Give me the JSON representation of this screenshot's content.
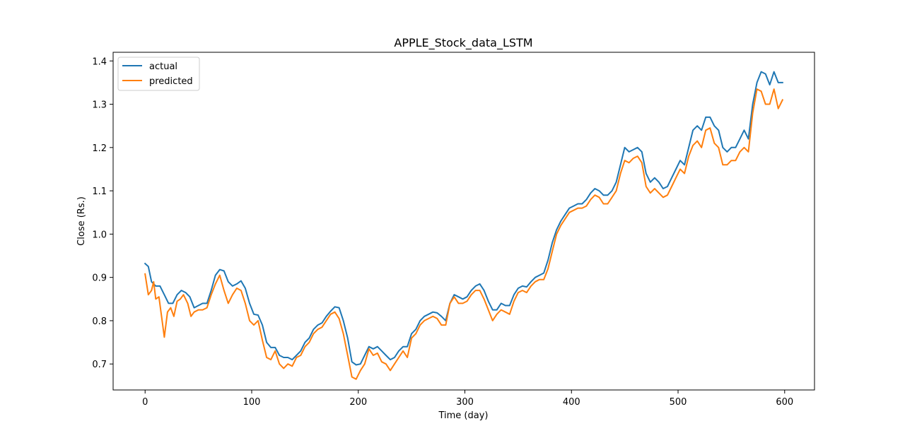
{
  "chart_data": {
    "type": "line",
    "title": "APPLE_Stock_data_LSTM",
    "xlabel": "Time (day)",
    "ylabel": "Close (Rs.)",
    "xlim": [
      -30,
      628
    ],
    "ylim": [
      0.64,
      1.42
    ],
    "xticks": [
      0,
      100,
      200,
      300,
      400,
      500,
      600
    ],
    "yticks": [
      0.7,
      0.8,
      0.9,
      1.0,
      1.1,
      1.2,
      1.3,
      1.4
    ],
    "ytick_labels": [
      "0.7",
      "0.8",
      "0.9",
      "1.0",
      "1.1",
      "1.2",
      "1.3",
      "1.4"
    ],
    "grid": false,
    "legend": "upper left",
    "series": [
      {
        "name": "actual",
        "color": "#1f77b4",
        "points": [
          [
            0,
            0.932
          ],
          [
            3,
            0.925
          ],
          [
            6,
            0.89
          ],
          [
            10,
            0.88
          ],
          [
            14,
            0.88
          ],
          [
            18,
            0.86
          ],
          [
            22,
            0.84
          ],
          [
            26,
            0.84
          ],
          [
            30,
            0.86
          ],
          [
            34,
            0.87
          ],
          [
            38,
            0.865
          ],
          [
            42,
            0.855
          ],
          [
            46,
            0.83
          ],
          [
            50,
            0.835
          ],
          [
            54,
            0.84
          ],
          [
            58,
            0.84
          ],
          [
            62,
            0.87
          ],
          [
            66,
            0.905
          ],
          [
            70,
            0.918
          ],
          [
            74,
            0.915
          ],
          [
            78,
            0.89
          ],
          [
            82,
            0.88
          ],
          [
            86,
            0.885
          ],
          [
            90,
            0.892
          ],
          [
            94,
            0.875
          ],
          [
            98,
            0.84
          ],
          [
            102,
            0.815
          ],
          [
            106,
            0.813
          ],
          [
            110,
            0.79
          ],
          [
            114,
            0.75
          ],
          [
            118,
            0.738
          ],
          [
            122,
            0.738
          ],
          [
            126,
            0.72
          ],
          [
            130,
            0.715
          ],
          [
            134,
            0.715
          ],
          [
            138,
            0.71
          ],
          [
            142,
            0.72
          ],
          [
            146,
            0.73
          ],
          [
            150,
            0.75
          ],
          [
            154,
            0.76
          ],
          [
            158,
            0.78
          ],
          [
            162,
            0.79
          ],
          [
            166,
            0.795
          ],
          [
            170,
            0.81
          ],
          [
            174,
            0.822
          ],
          [
            178,
            0.832
          ],
          [
            182,
            0.83
          ],
          [
            186,
            0.8
          ],
          [
            190,
            0.76
          ],
          [
            194,
            0.705
          ],
          [
            198,
            0.698
          ],
          [
            202,
            0.7
          ],
          [
            206,
            0.72
          ],
          [
            210,
            0.74
          ],
          [
            214,
            0.735
          ],
          [
            218,
            0.74
          ],
          [
            222,
            0.73
          ],
          [
            226,
            0.72
          ],
          [
            230,
            0.71
          ],
          [
            234,
            0.715
          ],
          [
            238,
            0.73
          ],
          [
            242,
            0.74
          ],
          [
            246,
            0.74
          ],
          [
            250,
            0.77
          ],
          [
            254,
            0.78
          ],
          [
            258,
            0.8
          ],
          [
            262,
            0.81
          ],
          [
            266,
            0.815
          ],
          [
            270,
            0.82
          ],
          [
            274,
            0.818
          ],
          [
            278,
            0.81
          ],
          [
            282,
            0.8
          ],
          [
            286,
            0.84
          ],
          [
            290,
            0.86
          ],
          [
            294,
            0.855
          ],
          [
            298,
            0.85
          ],
          [
            302,
            0.855
          ],
          [
            306,
            0.87
          ],
          [
            310,
            0.88
          ],
          [
            314,
            0.885
          ],
          [
            318,
            0.87
          ],
          [
            322,
            0.845
          ],
          [
            326,
            0.825
          ],
          [
            330,
            0.825
          ],
          [
            334,
            0.84
          ],
          [
            338,
            0.835
          ],
          [
            342,
            0.835
          ],
          [
            346,
            0.86
          ],
          [
            350,
            0.875
          ],
          [
            354,
            0.88
          ],
          [
            358,
            0.878
          ],
          [
            362,
            0.89
          ],
          [
            366,
            0.9
          ],
          [
            370,
            0.905
          ],
          [
            374,
            0.91
          ],
          [
            378,
            0.94
          ],
          [
            382,
            0.98
          ],
          [
            386,
            1.01
          ],
          [
            390,
            1.03
          ],
          [
            394,
            1.045
          ],
          [
            398,
            1.06
          ],
          [
            402,
            1.065
          ],
          [
            406,
            1.07
          ],
          [
            410,
            1.07
          ],
          [
            414,
            1.08
          ],
          [
            418,
            1.095
          ],
          [
            422,
            1.105
          ],
          [
            426,
            1.1
          ],
          [
            430,
            1.09
          ],
          [
            434,
            1.09
          ],
          [
            438,
            1.1
          ],
          [
            442,
            1.12
          ],
          [
            446,
            1.16
          ],
          [
            450,
            1.2
          ],
          [
            454,
            1.19
          ],
          [
            458,
            1.195
          ],
          [
            462,
            1.2
          ],
          [
            466,
            1.19
          ],
          [
            470,
            1.14
          ],
          [
            474,
            1.12
          ],
          [
            478,
            1.13
          ],
          [
            482,
            1.12
          ],
          [
            486,
            1.105
          ],
          [
            490,
            1.11
          ],
          [
            494,
            1.13
          ],
          [
            498,
            1.15
          ],
          [
            502,
            1.17
          ],
          [
            506,
            1.16
          ],
          [
            510,
            1.2
          ],
          [
            514,
            1.24
          ],
          [
            518,
            1.25
          ],
          [
            522,
            1.24
          ],
          [
            526,
            1.27
          ],
          [
            530,
            1.27
          ],
          [
            534,
            1.25
          ],
          [
            538,
            1.24
          ],
          [
            542,
            1.2
          ],
          [
            546,
            1.19
          ],
          [
            550,
            1.2
          ],
          [
            554,
            1.2
          ],
          [
            558,
            1.22
          ],
          [
            562,
            1.24
          ],
          [
            566,
            1.22
          ],
          [
            570,
            1.3
          ],
          [
            574,
            1.35
          ],
          [
            578,
            1.375
          ],
          [
            582,
            1.37
          ],
          [
            586,
            1.345
          ],
          [
            590,
            1.375
          ],
          [
            594,
            1.35
          ],
          [
            598,
            1.35
          ]
        ]
      },
      {
        "name": "predicted",
        "color": "#ff7f0e",
        "points": [
          [
            0,
            0.908
          ],
          [
            3,
            0.86
          ],
          [
            6,
            0.87
          ],
          [
            8,
            0.89
          ],
          [
            10,
            0.85
          ],
          [
            13,
            0.855
          ],
          [
            16,
            0.8
          ],
          [
            18,
            0.762
          ],
          [
            21,
            0.82
          ],
          [
            24,
            0.83
          ],
          [
            27,
            0.81
          ],
          [
            30,
            0.845
          ],
          [
            33,
            0.85
          ],
          [
            36,
            0.86
          ],
          [
            40,
            0.84
          ],
          [
            43,
            0.81
          ],
          [
            46,
            0.82
          ],
          [
            50,
            0.825
          ],
          [
            54,
            0.825
          ],
          [
            58,
            0.83
          ],
          [
            62,
            0.86
          ],
          [
            66,
            0.885
          ],
          [
            70,
            0.905
          ],
          [
            74,
            0.87
          ],
          [
            78,
            0.84
          ],
          [
            82,
            0.86
          ],
          [
            86,
            0.875
          ],
          [
            90,
            0.87
          ],
          [
            94,
            0.84
          ],
          [
            98,
            0.8
          ],
          [
            102,
            0.79
          ],
          [
            106,
            0.8
          ],
          [
            110,
            0.755
          ],
          [
            114,
            0.715
          ],
          [
            118,
            0.71
          ],
          [
            122,
            0.73
          ],
          [
            126,
            0.7
          ],
          [
            130,
            0.69
          ],
          [
            134,
            0.7
          ],
          [
            138,
            0.695
          ],
          [
            142,
            0.715
          ],
          [
            146,
            0.72
          ],
          [
            150,
            0.74
          ],
          [
            154,
            0.75
          ],
          [
            158,
            0.77
          ],
          [
            162,
            0.78
          ],
          [
            166,
            0.785
          ],
          [
            170,
            0.8
          ],
          [
            174,
            0.815
          ],
          [
            178,
            0.82
          ],
          [
            182,
            0.805
          ],
          [
            186,
            0.77
          ],
          [
            190,
            0.72
          ],
          [
            194,
            0.67
          ],
          [
            198,
            0.665
          ],
          [
            202,
            0.685
          ],
          [
            206,
            0.7
          ],
          [
            210,
            0.735
          ],
          [
            214,
            0.72
          ],
          [
            218,
            0.725
          ],
          [
            222,
            0.705
          ],
          [
            226,
            0.7
          ],
          [
            230,
            0.685
          ],
          [
            234,
            0.7
          ],
          [
            238,
            0.715
          ],
          [
            242,
            0.73
          ],
          [
            246,
            0.715
          ],
          [
            250,
            0.76
          ],
          [
            254,
            0.77
          ],
          [
            258,
            0.79
          ],
          [
            262,
            0.8
          ],
          [
            266,
            0.805
          ],
          [
            270,
            0.81
          ],
          [
            274,
            0.805
          ],
          [
            278,
            0.79
          ],
          [
            282,
            0.79
          ],
          [
            286,
            0.84
          ],
          [
            290,
            0.855
          ],
          [
            294,
            0.84
          ],
          [
            298,
            0.84
          ],
          [
            302,
            0.845
          ],
          [
            306,
            0.86
          ],
          [
            310,
            0.87
          ],
          [
            314,
            0.87
          ],
          [
            318,
            0.85
          ],
          [
            322,
            0.825
          ],
          [
            326,
            0.8
          ],
          [
            330,
            0.815
          ],
          [
            334,
            0.825
          ],
          [
            338,
            0.82
          ],
          [
            342,
            0.815
          ],
          [
            346,
            0.845
          ],
          [
            350,
            0.865
          ],
          [
            354,
            0.87
          ],
          [
            358,
            0.865
          ],
          [
            362,
            0.88
          ],
          [
            366,
            0.89
          ],
          [
            370,
            0.895
          ],
          [
            374,
            0.895
          ],
          [
            378,
            0.92
          ],
          [
            382,
            0.96
          ],
          [
            386,
            1.0
          ],
          [
            390,
            1.02
          ],
          [
            394,
            1.035
          ],
          [
            398,
            1.05
          ],
          [
            402,
            1.055
          ],
          [
            406,
            1.06
          ],
          [
            410,
            1.06
          ],
          [
            414,
            1.065
          ],
          [
            418,
            1.08
          ],
          [
            422,
            1.09
          ],
          [
            426,
            1.085
          ],
          [
            430,
            1.07
          ],
          [
            434,
            1.07
          ],
          [
            438,
            1.085
          ],
          [
            442,
            1.1
          ],
          [
            446,
            1.14
          ],
          [
            450,
            1.17
          ],
          [
            454,
            1.165
          ],
          [
            458,
            1.175
          ],
          [
            462,
            1.18
          ],
          [
            466,
            1.165
          ],
          [
            470,
            1.11
          ],
          [
            474,
            1.095
          ],
          [
            478,
            1.105
          ],
          [
            482,
            1.095
          ],
          [
            486,
            1.085
          ],
          [
            490,
            1.09
          ],
          [
            494,
            1.11
          ],
          [
            498,
            1.13
          ],
          [
            502,
            1.15
          ],
          [
            506,
            1.14
          ],
          [
            510,
            1.18
          ],
          [
            514,
            1.205
          ],
          [
            518,
            1.215
          ],
          [
            522,
            1.2
          ],
          [
            526,
            1.24
          ],
          [
            530,
            1.245
          ],
          [
            534,
            1.21
          ],
          [
            538,
            1.2
          ],
          [
            542,
            1.16
          ],
          [
            546,
            1.16
          ],
          [
            550,
            1.17
          ],
          [
            554,
            1.17
          ],
          [
            558,
            1.19
          ],
          [
            562,
            1.2
          ],
          [
            566,
            1.19
          ],
          [
            570,
            1.28
          ],
          [
            574,
            1.335
          ],
          [
            578,
            1.33
          ],
          [
            582,
            1.3
          ],
          [
            586,
            1.3
          ],
          [
            590,
            1.335
          ],
          [
            594,
            1.29
          ],
          [
            598,
            1.31
          ]
        ]
      }
    ]
  }
}
